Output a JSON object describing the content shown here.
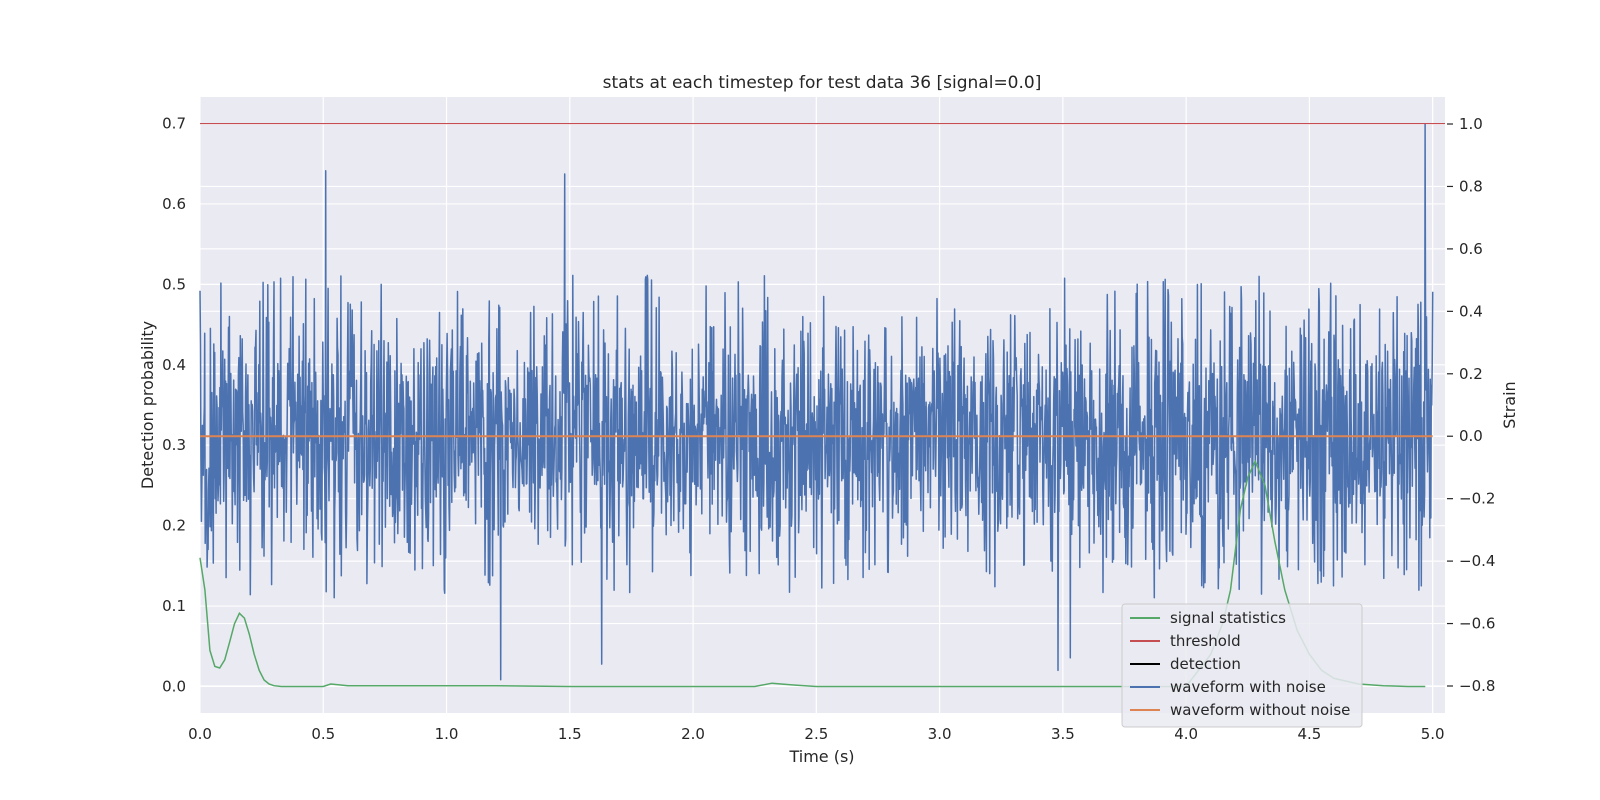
{
  "chart_data": {
    "type": "line",
    "title": "stats at each timestep for test data 36 [signal=0.0]",
    "xlabel": "Time (s)",
    "ylabel": "Detection probability",
    "y2label": "Strain",
    "xlim": [
      0.0,
      5.05
    ],
    "ylim": [
      -0.033,
      0.733
    ],
    "y2lim": [
      -0.8865,
      1.0865
    ],
    "x_ticks": [
      "0.0",
      "0.5",
      "1.0",
      "1.5",
      "2.0",
      "2.5",
      "3.0",
      "3.5",
      "4.0",
      "4.5",
      "5.0"
    ],
    "y_ticks": [
      "0.0",
      "0.1",
      "0.2",
      "0.3",
      "0.4",
      "0.5",
      "0.6",
      "0.7"
    ],
    "y2_ticks": [
      "−0.8",
      "−0.6",
      "−0.4",
      "−0.2",
      "0.0",
      "0.2",
      "0.4",
      "0.6",
      "0.8",
      "1.0"
    ],
    "grid": true,
    "background": "#eaeaf2",
    "legend_position": "lower-right",
    "legend": [
      {
        "label": "signal statistics",
        "color": "#55a868"
      },
      {
        "label": "threshold",
        "color": "#c44e52"
      },
      {
        "label": "detection",
        "color": "#000000"
      },
      {
        "label": "waveform with noise",
        "color": "#4c72b0"
      },
      {
        "label": "waveform without noise",
        "color": "#dd8452"
      }
    ],
    "series": [
      {
        "name": "signal statistics",
        "axis": "left",
        "color": "#55a868",
        "x": [
          0.0,
          0.02,
          0.04,
          0.06,
          0.08,
          0.1,
          0.12,
          0.14,
          0.16,
          0.18,
          0.2,
          0.22,
          0.24,
          0.26,
          0.28,
          0.3,
          0.33,
          0.4,
          0.5,
          0.53,
          0.6,
          0.8,
          1.0,
          1.2,
          1.5,
          2.0,
          2.25,
          2.32,
          2.4,
          2.5,
          3.0,
          3.5,
          4.0,
          4.1,
          4.15,
          4.18,
          4.2,
          4.22,
          4.25,
          4.28,
          4.32,
          4.36,
          4.4,
          4.45,
          4.5,
          4.55,
          4.6,
          4.7,
          4.8,
          4.9,
          4.97
        ],
        "y": [
          0.16,
          0.12,
          0.045,
          0.025,
          0.023,
          0.033,
          0.055,
          0.078,
          0.091,
          0.085,
          0.065,
          0.04,
          0.02,
          0.008,
          0.003,
          0.001,
          0.0,
          0.0,
          0.0,
          0.003,
          0.001,
          0.001,
          0.001,
          0.001,
          0.0,
          0.0,
          0.0,
          0.004,
          0.002,
          0.0,
          0.0,
          0.0,
          0.0,
          0.04,
          0.08,
          0.12,
          0.17,
          0.22,
          0.26,
          0.28,
          0.25,
          0.18,
          0.12,
          0.07,
          0.04,
          0.02,
          0.01,
          0.003,
          0.001,
          0.0,
          0.0
        ]
      },
      {
        "name": "threshold",
        "axis": "left",
        "color": "#c44e52",
        "x": [
          0.0,
          5.05
        ],
        "y": [
          0.7,
          0.7
        ]
      },
      {
        "name": "waveform with noise",
        "axis": "right",
        "color": "#4c72b0",
        "x_range": [
          0.0,
          5.0
        ],
        "typical_range": [
          -0.45,
          0.45
        ],
        "extremes": [
          {
            "x": 0.51,
            "y": 0.85
          },
          {
            "x": 1.48,
            "y": 0.84
          },
          {
            "x": 4.97,
            "y": 1.0
          },
          {
            "x": 1.22,
            "y": -0.78
          },
          {
            "x": 1.63,
            "y": -0.73
          },
          {
            "x": 3.48,
            "y": -0.75
          },
          {
            "x": 3.53,
            "y": -0.71
          }
        ]
      },
      {
        "name": "waveform without noise",
        "axis": "right",
        "color": "#dd8452",
        "x": [
          0.0,
          5.0
        ],
        "y": [
          0.0,
          0.0
        ]
      }
    ]
  }
}
